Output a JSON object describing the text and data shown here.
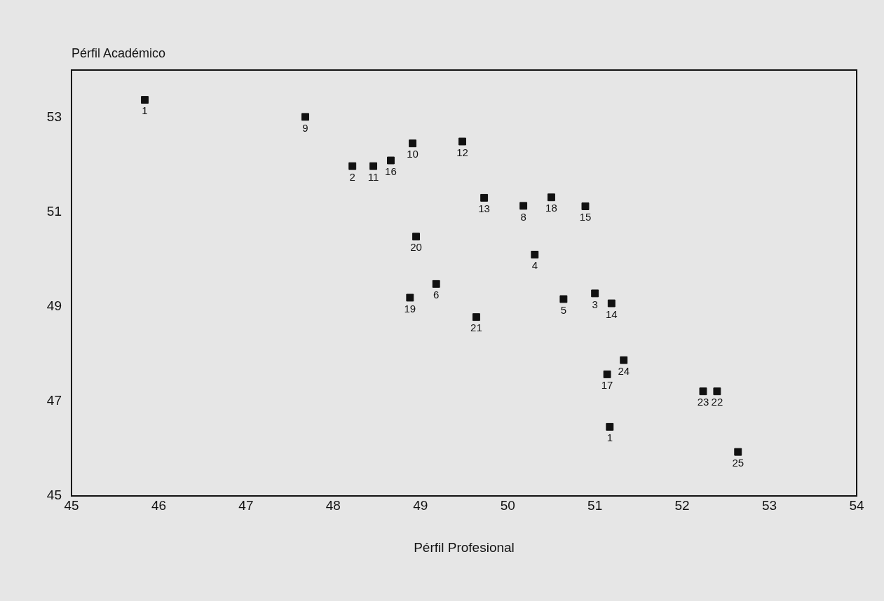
{
  "chart_data": {
    "type": "scatter",
    "xlabel": "Pérfil Profesional",
    "ylabel": "Pérfil Académico",
    "x": [
      45.84,
      47.68,
      48.91,
      49.48,
      48.22,
      48.46,
      48.66,
      49.73,
      50.18,
      50.5,
      50.89,
      48.95,
      50.31,
      49.18,
      48.88,
      50.64,
      51.0,
      51.19,
      49.64,
      51.33,
      51.14,
      52.24,
      52.4,
      51.17,
      52.64
    ],
    "values": [
      53.37,
      53.01,
      52.45,
      52.49,
      51.97,
      51.97,
      52.09,
      51.3,
      51.13,
      51.31,
      51.12,
      50.48,
      50.1,
      49.48,
      49.19,
      49.16,
      49.28,
      49.07,
      48.78,
      47.87,
      47.57,
      47.21,
      47.21,
      46.46,
      45.93
    ],
    "annotations": [
      {
        "text": "1",
        "x": 45.84,
        "y": 53.37
      },
      {
        "text": "9",
        "x": 47.68,
        "y": 53.01
      },
      {
        "text": "10",
        "x": 48.91,
        "y": 52.45
      },
      {
        "text": "12",
        "x": 49.48,
        "y": 52.49
      },
      {
        "text": "2",
        "x": 48.22,
        "y": 51.97
      },
      {
        "text": "11",
        "x": 48.46,
        "y": 51.97
      },
      {
        "text": "16",
        "x": 48.66,
        "y": 52.09
      },
      {
        "text": "13",
        "x": 49.73,
        "y": 51.3
      },
      {
        "text": "8",
        "x": 50.18,
        "y": 51.13
      },
      {
        "text": "18",
        "x": 50.5,
        "y": 51.31
      },
      {
        "text": "15",
        "x": 50.89,
        "y": 51.12
      },
      {
        "text": "20",
        "x": 48.95,
        "y": 50.48
      },
      {
        "text": "4",
        "x": 50.31,
        "y": 50.1
      },
      {
        "text": "6",
        "x": 49.18,
        "y": 49.48
      },
      {
        "text": "19",
        "x": 48.88,
        "y": 49.19
      },
      {
        "text": "5",
        "x": 50.64,
        "y": 49.16
      },
      {
        "text": "3",
        "x": 51.0,
        "y": 49.28
      },
      {
        "text": "14",
        "x": 51.19,
        "y": 49.07
      },
      {
        "text": "21",
        "x": 49.64,
        "y": 48.78
      },
      {
        "text": "24",
        "x": 51.33,
        "y": 47.87
      },
      {
        "text": "17",
        "x": 51.14,
        "y": 47.57
      },
      {
        "text": "23",
        "x": 52.24,
        "y": 47.21
      },
      {
        "text": "22",
        "x": 52.4,
        "y": 47.21
      },
      {
        "text": "1",
        "x": 51.17,
        "y": 46.46
      },
      {
        "text": "25",
        "x": 52.64,
        "y": 45.93
      }
    ],
    "color": "#111111",
    "marker": "square",
    "xlim": [
      45,
      54
    ],
    "ylim": [
      45,
      54
    ],
    "xticks": [
      45,
      46,
      47,
      48,
      49,
      50,
      51,
      52,
      53,
      54
    ],
    "yticks": [
      45,
      47,
      49,
      51,
      53
    ]
  }
}
